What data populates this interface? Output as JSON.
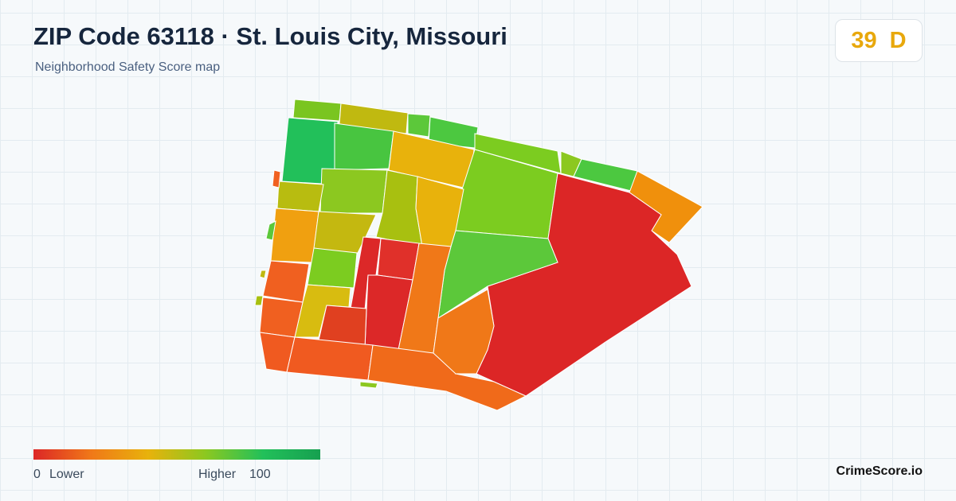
{
  "header": {
    "title": "ZIP Code 63118 · St. Louis City, Missouri",
    "subtitle": "Neighborhood Safety Score map"
  },
  "score": {
    "value": 39,
    "grade": "D"
  },
  "legend": {
    "min": 0,
    "min_label": "Lower",
    "max_label": "Higher",
    "max": 100
  },
  "brand": "CrimeScore.io"
}
